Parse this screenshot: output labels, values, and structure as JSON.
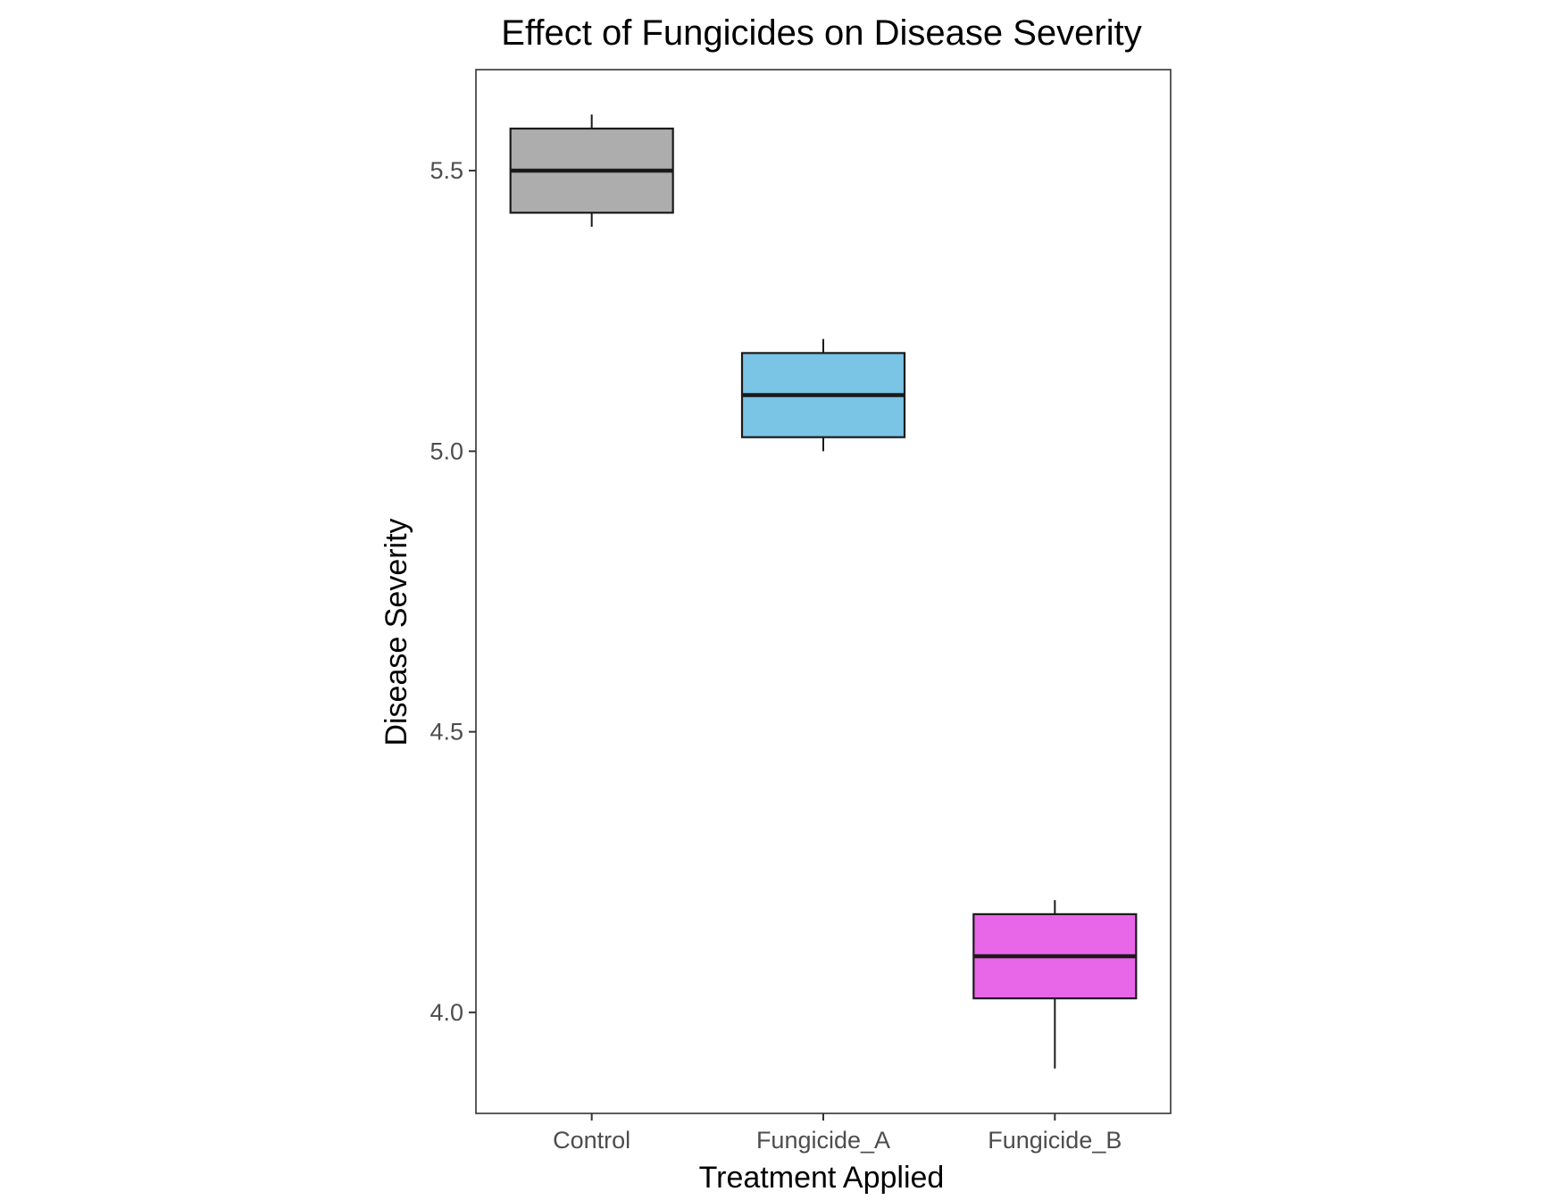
{
  "chart_data": {
    "type": "box",
    "title": "Effect of Fungicides on Disease Severity",
    "xlabel": "Treatment Applied",
    "ylabel": "Disease Severity",
    "categories": [
      "Control",
      "Fungicide_A",
      "Fungicide_B"
    ],
    "ylim": [
      3.82,
      5.68
    ],
    "yticks": [
      4.0,
      4.5,
      5.0,
      5.5
    ],
    "ytick_labels": [
      "4.0",
      "4.5",
      "5.0",
      "5.5"
    ],
    "boxes": [
      {
        "category": "Control",
        "whisker_low": 5.4,
        "q1": 5.425,
        "median": 5.5,
        "q3": 5.575,
        "whisker_high": 5.6,
        "fill": "#ADADAD"
      },
      {
        "category": "Fungicide_A",
        "whisker_low": 5.0,
        "q1": 5.025,
        "median": 5.1,
        "q3": 5.175,
        "whisker_high": 5.2,
        "fill": "#7AC4E6"
      },
      {
        "category": "Fungicide_B",
        "whisker_low": 3.9,
        "q1": 4.025,
        "median": 4.1,
        "q3": 4.175,
        "whisker_high": 4.2,
        "fill": "#E866E8"
      }
    ],
    "grid": false,
    "legend": "none"
  },
  "colors": {
    "outline": "#1a1a1a",
    "panel_border": "#333333",
    "tick_text": "#4d4d4d"
  }
}
